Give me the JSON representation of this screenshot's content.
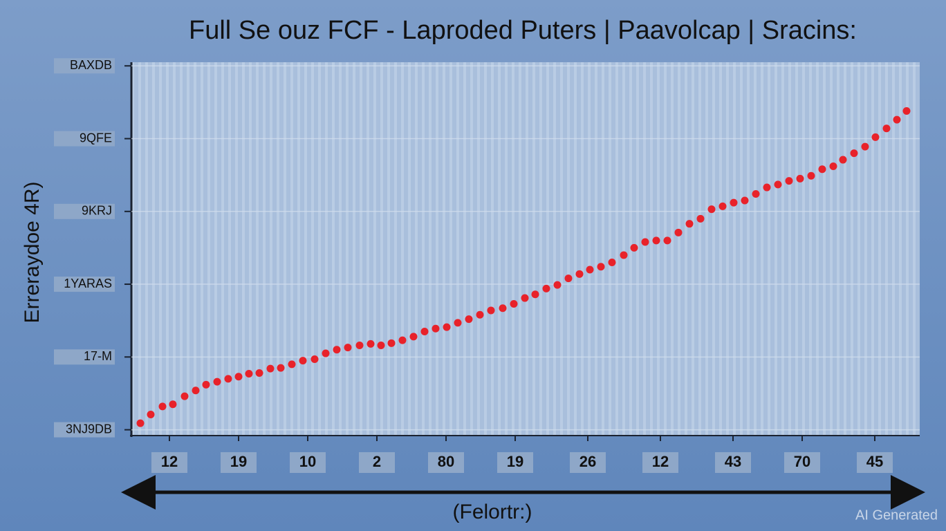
{
  "chart_data": {
    "type": "scatter",
    "title": "Full Se ouz FCF - Laproded Puters | Paavolcap | Sracins:",
    "ylabel": "Erreraydoe 4R)",
    "xlabel": "(Felortr:)",
    "watermark": "AI Generated",
    "color": "#e8222a",
    "grid": true,
    "xlim": [
      0.45,
      11.85
    ],
    "ylim": [
      -0.08,
      5.05
    ],
    "xticks": [
      {
        "value": 1,
        "label": "12"
      },
      {
        "value": 2,
        "label": "19"
      },
      {
        "value": 3,
        "label": "10"
      },
      {
        "value": 4,
        "label": "2"
      },
      {
        "value": 5,
        "label": "80"
      },
      {
        "value": 6,
        "label": "19"
      },
      {
        "value": 7.05,
        "label": "26"
      },
      {
        "value": 8.1,
        "label": "12"
      },
      {
        "value": 9.15,
        "label": "43"
      },
      {
        "value": 10.15,
        "label": "70"
      },
      {
        "value": 11.2,
        "label": "45"
      }
    ],
    "yticks": [
      {
        "value": 0,
        "label": "3NJ9DB"
      },
      {
        "value": 1,
        "label": "17-M"
      },
      {
        "value": 2,
        "label": "1YARAS"
      },
      {
        "value": 3,
        "label": "9KRJ"
      },
      {
        "value": 4,
        "label": "9QFE"
      },
      {
        "value": 5,
        "label": "BAXDB"
      }
    ],
    "x": [
      0.58,
      0.73,
      0.9,
      1.05,
      1.22,
      1.38,
      1.53,
      1.69,
      1.85,
      2.0,
      2.15,
      2.3,
      2.46,
      2.61,
      2.77,
      2.93,
      3.1,
      3.26,
      3.42,
      3.58,
      3.75,
      3.91,
      4.06,
      4.21,
      4.37,
      4.53,
      4.69,
      4.85,
      5.01,
      5.17,
      5.33,
      5.49,
      5.65,
      5.82,
      5.98,
      6.14,
      6.29,
      6.45,
      6.61,
      6.77,
      6.93,
      7.08,
      7.24,
      7.4,
      7.57,
      7.72,
      7.88,
      8.04,
      8.2,
      8.36,
      8.52,
      8.68,
      8.84,
      9.0,
      9.16,
      9.32,
      9.48,
      9.64,
      9.8,
      9.96,
      10.12,
      10.28,
      10.44,
      10.6,
      10.74,
      10.9,
      11.06,
      11.21,
      11.37,
      11.52,
      11.66
    ],
    "values": [
      0.09,
      0.21,
      0.32,
      0.35,
      0.46,
      0.54,
      0.62,
      0.66,
      0.7,
      0.73,
      0.77,
      0.78,
      0.84,
      0.85,
      0.9,
      0.95,
      0.97,
      1.05,
      1.1,
      1.13,
      1.16,
      1.18,
      1.16,
      1.19,
      1.23,
      1.28,
      1.35,
      1.39,
      1.41,
      1.47,
      1.52,
      1.58,
      1.64,
      1.67,
      1.73,
      1.81,
      1.86,
      1.94,
      1.99,
      2.08,
      2.14,
      2.2,
      2.24,
      2.3,
      2.4,
      2.5,
      2.58,
      2.6,
      2.6,
      2.71,
      2.83,
      2.9,
      3.03,
      3.07,
      3.12,
      3.15,
      3.24,
      3.33,
      3.37,
      3.42,
      3.45,
      3.49,
      3.58,
      3.62,
      3.71,
      3.8,
      3.89,
      4.02,
      4.14,
      4.26,
      4.38
    ]
  }
}
